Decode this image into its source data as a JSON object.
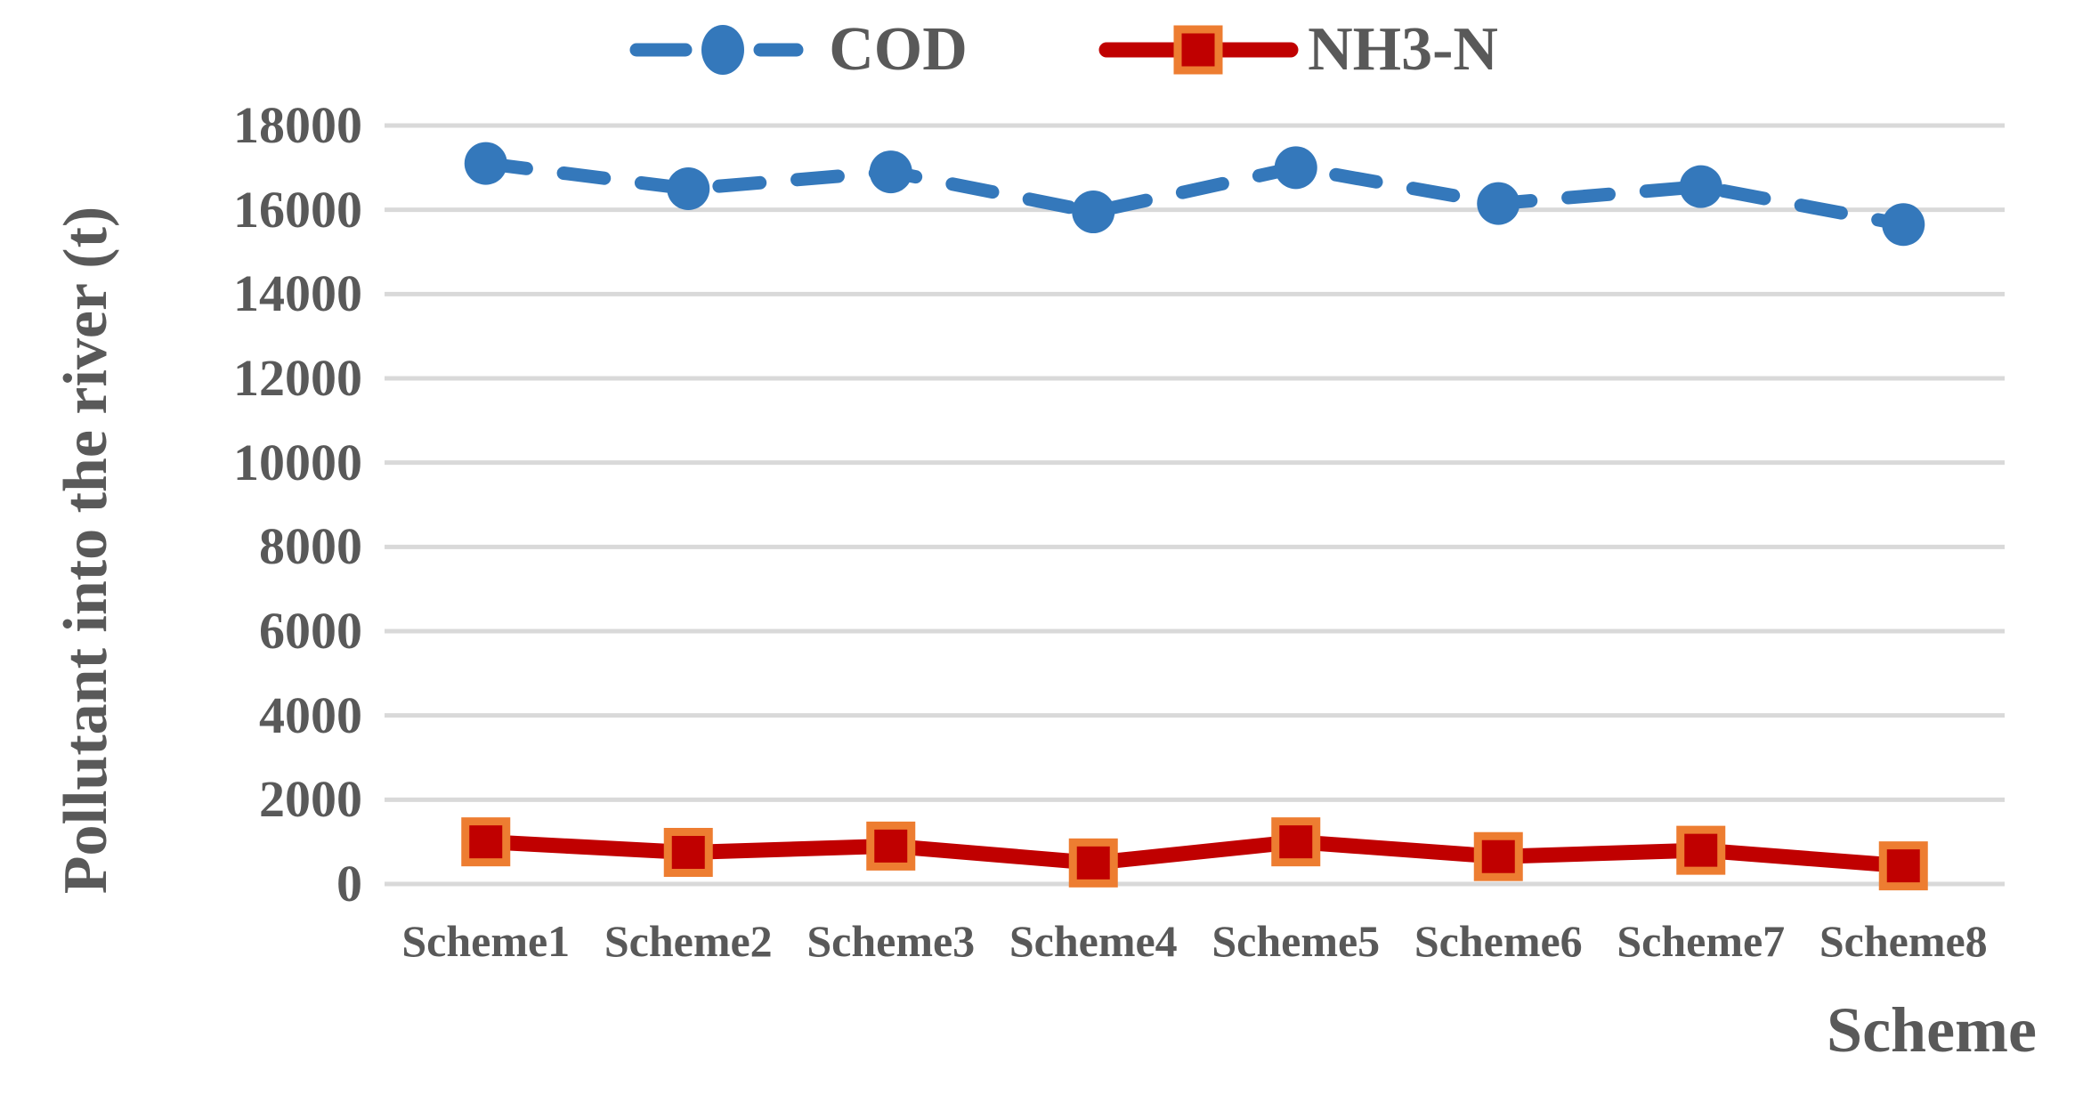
{
  "chart_data": {
    "type": "line",
    "title": "",
    "categories": [
      "Scheme1",
      "Scheme2",
      "Scheme3",
      "Scheme4",
      "Scheme5",
      "Scheme6",
      "Scheme7",
      "Scheme8"
    ],
    "series": [
      {
        "name": "COD",
        "values": [
          17100,
          16500,
          16900,
          15950,
          17000,
          16150,
          16550,
          15650
        ],
        "color": "#3478BB",
        "line_style": "dashed",
        "marker": "circle"
      },
      {
        "name": "NH3-N",
        "values": [
          1000,
          750,
          900,
          500,
          1000,
          650,
          800,
          430
        ],
        "color": "#C00000",
        "marker_border_color": "#ED7D31",
        "line_style": "solid",
        "marker": "square"
      }
    ],
    "xlabel": "Scheme",
    "ylabel": "Pollutant into the river  (t)",
    "ylim": [
      0,
      18000
    ],
    "ytick_step": 2000,
    "yticks": [
      "0",
      "2000",
      "4000",
      "6000",
      "8000",
      "10000",
      "12000",
      "14000",
      "16000",
      "18000"
    ],
    "grid": "horizontal",
    "gridline_color": "#D9D9D9",
    "text_color": "#595959",
    "legend_position": "top-center"
  }
}
